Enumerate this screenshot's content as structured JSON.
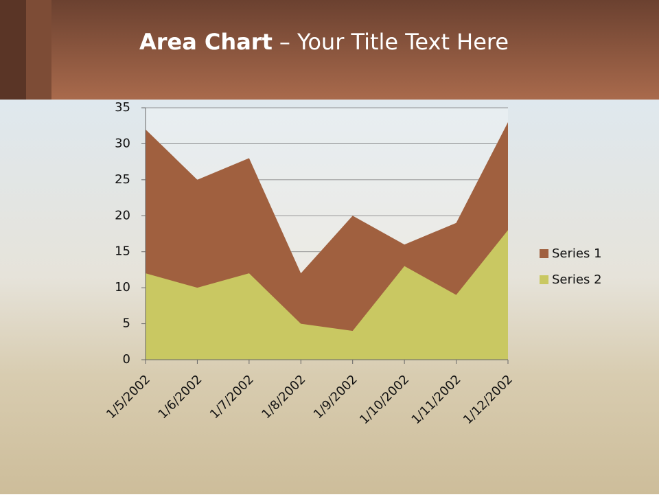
{
  "chart_data": {
    "type": "area",
    "title": [
      "Area Chart",
      "– Your Title Text Here"
    ],
    "categories": [
      "1/5/2002",
      "1/6/2002",
      "1/7/2002",
      "1/8/2002",
      "1/9/2002",
      "1/10/2002",
      "1/11/2002",
      "1/12/2002"
    ],
    "series": [
      {
        "name": "Series 1",
        "color": "#a0603f",
        "values": [
          32,
          25,
          28,
          12,
          20,
          16,
          19,
          33
        ]
      },
      {
        "name": "Series 2",
        "color": "#c9c862",
        "values": [
          12,
          10,
          12,
          5,
          4,
          13,
          9,
          18
        ]
      }
    ],
    "ylim": [
      0,
      35
    ],
    "yticks": [
      0,
      5,
      10,
      15,
      20,
      25,
      30,
      35
    ],
    "grid": true,
    "legend": "right"
  }
}
